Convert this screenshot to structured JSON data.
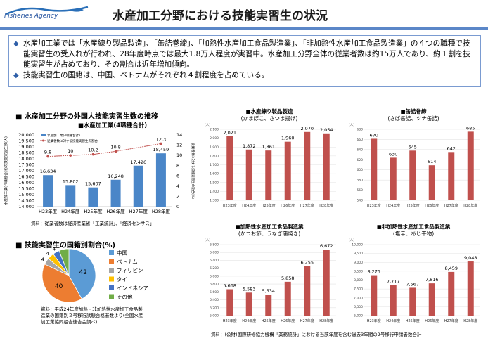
{
  "header": {
    "logo_text": "Fisheries Agency",
    "title": "水産加工分野における技能実習生の状況"
  },
  "summary": {
    "bullets": [
      "水産加工業では「水産練り製品製造」、「缶詰巻締」、「加熱性水産加工食品製造業」、「非加熱性水産加工食品製造業」の４つの職種で技能実習生の受入れが行われ、28年度時点では最大1.8万人程度が実習中。水産加工分野全体の従業者数は約15万人であり、約１割を技能実習生が占めており、その割合は近年増加傾向。",
      "技能実習生の国籍は、中国、ベトナムがそれぞれ４割程度を占めている。"
    ]
  },
  "left_top": {
    "section_title": "■ 水産加工分野の外国人技能実習生数の推移",
    "note": "資料：従業者数は経済産業省「工業統計」、「経済センサス」"
  },
  "left_bottom": {
    "section_title": "■ 技能実習生の国籍別割合(%)",
    "note_lines": [
      "資料：平成24年度加熱・非加熱性水産加工食品製",
      "造業の国籍別２号移行試験合格者数より(全国水産",
      "加工業協同組合連合会調べ)"
    ]
  },
  "bottom_note": "資料：(公財)国際研修協力機構「業務統計」における当該年度を含む過去3年間の2号移行申請者数合計",
  "chart_data": [
    {
      "type": "bar",
      "title": "■水産加工業(4職種合計)",
      "categories": [
        "H23年度",
        "H24年度",
        "H25年度",
        "H26年度",
        "H27年度",
        "H28年度"
      ],
      "series": [
        {
          "name": "水産加工業(4職種合計)",
          "values": [
            16634,
            15802,
            15607,
            16248,
            17426,
            18459
          ],
          "axis": "left",
          "color": "#4a86c8"
        },
        {
          "name": "従業者数に対する技能実習生の割合",
          "values": [
            9.8,
            10,
            10.2,
            10.8,
            null,
            12.3
          ],
          "axis": "right",
          "kind": "line",
          "color": "#c0504d"
        }
      ],
      "ylabel": "水産加工業(４職種合計)の技能実習生数(人)",
      "y2label": "従業者数に対する技能実習生の割合(%)",
      "ylim": [
        14000,
        20000
      ],
      "y_ticks": [
        "14,000",
        "14,500",
        "15,000",
        "15,500",
        "16,000",
        "16,500",
        "17,000",
        "17,500",
        "18,000",
        "18,500",
        "19,000",
        "19,500",
        "20,000"
      ],
      "y2lim": [
        0,
        14
      ],
      "y2_ticks": [
        "0",
        "2",
        "4",
        "6",
        "8",
        "10",
        "12",
        "14"
      ],
      "bar_labels": [
        "16,634",
        "15,802",
        "15,607",
        "16,248",
        "17,426",
        "18,459"
      ],
      "line_labels": [
        "9.8",
        "10",
        "10.2",
        "10.8",
        "",
        "12.3"
      ]
    },
    {
      "type": "pie",
      "categories": [
        "中国",
        "ベトナム",
        "フィリピン",
        "タイ",
        "インドネシア",
        "その他"
      ],
      "values": [
        42,
        40,
        4,
        4,
        4,
        6
      ],
      "slice_labels": [
        "42",
        "40",
        "4",
        "4",
        "4",
        "6"
      ],
      "colors": [
        "#5b9bd5",
        "#ed7d31",
        "#a5a5a5",
        "#ffc000",
        "#4472c4",
        "#70ad47"
      ]
    },
    {
      "type": "bar",
      "title": "■水産練り製品製造",
      "subtitle": "(かまぼこ、さつま揚げ)",
      "unit": "(人)",
      "categories": [
        "H23年度",
        "H24年度",
        "H25年度",
        "H26年度",
        "H27年度",
        "H28年度"
      ],
      "values": [
        2021,
        1872,
        1861,
        1960,
        2070,
        2054
      ],
      "value_labels": [
        "2,021",
        "1,872",
        "1,861",
        "1,960",
        "2,070",
        "2,054"
      ],
      "ylim": [
        1300,
        2100
      ],
      "y_ticks": [
        "1,300",
        "1,400",
        "1,500",
        "1,600",
        "1,700",
        "1,800",
        "1,900",
        "2,000",
        "2,100"
      ],
      "color": "#c0504d"
    },
    {
      "type": "bar",
      "title": "■缶詰巻締",
      "subtitle": "(さば缶詰、ツナ缶詰)",
      "unit": "(人)",
      "categories": [
        "H23年度",
        "H24年度",
        "H25年度",
        "H26年度",
        "H27年度",
        "H28年度"
      ],
      "values": [
        670,
        630,
        645,
        614,
        642,
        685
      ],
      "value_labels": [
        "670",
        "630",
        "645",
        "614",
        "642",
        "685"
      ],
      "ylim": [
        540,
        690
      ],
      "y_ticks": [
        "540",
        "560",
        "580",
        "600",
        "620",
        "640",
        "660",
        "680"
      ],
      "color": "#c0504d"
    },
    {
      "type": "bar",
      "title": "■加熱性水産加工食品製造業",
      "subtitle": "(かつお節、うなぎ蒲焼き)",
      "unit": "(人)",
      "categories": [
        "H23年度",
        "H24年度",
        "H25年度",
        "H26年度",
        "H27年度",
        "H28年度"
      ],
      "values": [
        5668,
        5583,
        5534,
        5858,
        6255,
        6672
      ],
      "value_labels": [
        "5,668",
        "5,583",
        "5,534",
        "5,858",
        "6,255",
        "6,672"
      ],
      "ylim": [
        5000,
        6800
      ],
      "y_ticks": [
        "5,000",
        "5,200",
        "5,400",
        "5,600",
        "5,800",
        "6,000",
        "6,200",
        "6,400",
        "6,600",
        "6,800"
      ],
      "color": "#c0504d"
    },
    {
      "type": "bar",
      "title": "■非加熱性水産加工食品製造業",
      "subtitle": "(塩辛、あじ干物)",
      "unit": "(人)",
      "categories": [
        "H23年度",
        "H24年度",
        "H25年度",
        "H26年度",
        "H27年度",
        "H28年度"
      ],
      "values": [
        8275,
        7717,
        7567,
        7816,
        8459,
        9048
      ],
      "value_labels": [
        "8,275",
        "7,717",
        "7,567",
        "7,816",
        "8,459",
        "9,048"
      ],
      "ylim": [
        6000,
        10000
      ],
      "y_ticks": [
        "6,000",
        "6,500",
        "7,000",
        "7,500",
        "8,000",
        "8,500",
        "9,000",
        "9,500",
        "10,000"
      ],
      "color": "#c0504d"
    }
  ]
}
